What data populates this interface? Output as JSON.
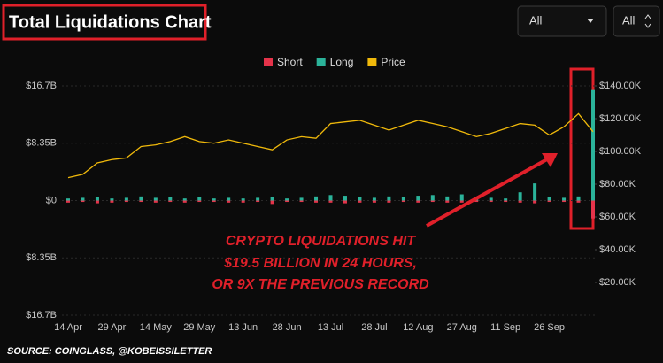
{
  "header": {
    "title": "Total Liquidations Chart",
    "filters": [
      "All",
      "All"
    ]
  },
  "chart_data": {
    "type": "bar",
    "categories": [
      "14 Apr",
      null,
      null,
      "29 Apr",
      null,
      null,
      "14 May",
      null,
      null,
      "29 May",
      null,
      null,
      "13 Jun",
      null,
      null,
      "28 Jun",
      null,
      null,
      "13 Jul",
      null,
      null,
      "28 Jul",
      null,
      null,
      "12 Aug",
      null,
      null,
      "27 Aug",
      null,
      null,
      "11 Sep",
      null,
      null,
      "26 Sep",
      null,
      null,
      null
    ],
    "series": [
      {
        "name": "Short",
        "color": "#e5334a",
        "values": [
          -0.3,
          -0.2,
          -0.4,
          -0.3,
          -0.2,
          -0.2,
          -0.3,
          -0.2,
          -0.3,
          -0.2,
          -0.2,
          -0.3,
          -0.3,
          -0.2,
          -0.5,
          -0.2,
          -0.2,
          -0.3,
          -0.3,
          -0.4,
          -0.3,
          -0.3,
          -0.3,
          -0.2,
          -0.3,
          -0.2,
          -0.3,
          -0.3,
          -0.2,
          -0.2,
          -0.2,
          -0.3,
          -0.4,
          -0.2,
          -0.2,
          -0.3,
          -2.6
        ]
      },
      {
        "name": "Long",
        "color": "#2bb39a",
        "values": [
          0.3,
          0.4,
          0.5,
          0.3,
          0.4,
          0.6,
          0.4,
          0.5,
          0.3,
          0.5,
          0.3,
          0.4,
          0.3,
          0.4,
          0.5,
          0.3,
          0.4,
          0.6,
          0.8,
          0.7,
          0.5,
          0.4,
          0.6,
          0.5,
          0.7,
          0.8,
          0.6,
          0.9,
          0.5,
          0.4,
          0.3,
          1.2,
          2.5,
          0.5,
          0.4,
          0.6,
          16.1
        ]
      },
      {
        "name": "Price",
        "color": "#f0b90b",
        "type": "line",
        "axis": "y2",
        "values": [
          84000,
          86000,
          93000,
          95000,
          96000,
          103000,
          104000,
          106000,
          109000,
          106000,
          105000,
          107000,
          105000,
          103000,
          101000,
          107000,
          109000,
          108000,
          117000,
          118000,
          119000,
          116000,
          113000,
          116000,
          119000,
          117000,
          115000,
          112000,
          109000,
          111000,
          114000,
          117000,
          116000,
          110000,
          115000,
          123000,
          112000
        ]
      }
    ],
    "ylim": [
      -16.7,
      16.7
    ],
    "yticks": [
      {
        "value": 16.7,
        "label": "$16.7B"
      },
      {
        "value": 8.35,
        "label": "$8.35B"
      },
      {
        "value": 0,
        "label": "$0"
      },
      {
        "value": -8.35,
        "label": "$8.35B"
      },
      {
        "value": -16.7,
        "label": "$16.7B"
      }
    ],
    "y2lim": [
      0,
      140000
    ],
    "y2ticks": [
      {
        "value": 140000,
        "label": "$140.00K"
      },
      {
        "value": 120000,
        "label": "$120.00K"
      },
      {
        "value": 100000,
        "label": "$100.00K"
      },
      {
        "value": 80000,
        "label": "$80.00K"
      },
      {
        "value": 60000,
        "label": "$60.00K"
      },
      {
        "value": 40000,
        "label": "$40.00K"
      },
      {
        "value": 20000,
        "label": "$20.00K"
      }
    ],
    "grid": true,
    "legend": "top",
    "annotations": [
      "CRYPTO LIQUIDATIONS HIT",
      "$19.5 BILLION IN 24 HOURS,",
      "OR 9X THE PREVIOUS RECORD"
    ],
    "source": "SOURCE: COINGLASS, @KOBEISSILETTER"
  }
}
